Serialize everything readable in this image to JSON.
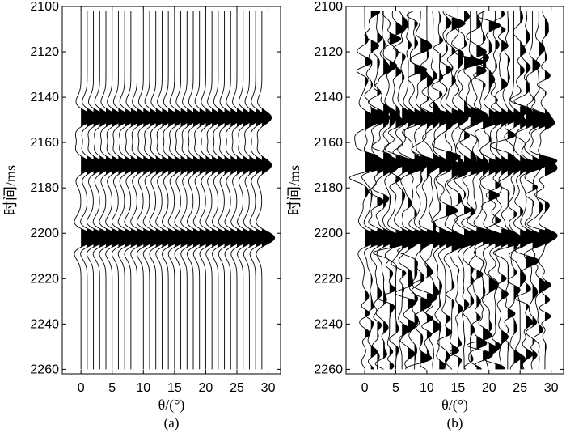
{
  "chart_data": [
    {
      "type": "seismic-wiggle",
      "panel_label": "(a)",
      "xlabel": "θ/(°)",
      "ylabel": "时间/ms",
      "xlim": [
        -3,
        32
      ],
      "ylim": [
        2100,
        2262
      ],
      "y_reversed": true,
      "x_ticks": [
        0,
        5,
        10,
        15,
        20,
        25,
        30
      ],
      "y_ticks": [
        2100,
        2120,
        2140,
        2160,
        2180,
        2200,
        2220,
        2240,
        2260
      ],
      "trace_angles": [
        0,
        1,
        2,
        3,
        4,
        5,
        6,
        7,
        8,
        9,
        10,
        11,
        12,
        13,
        14,
        15,
        16,
        17,
        18,
        19,
        20,
        21,
        22,
        23,
        24,
        25,
        26,
        27,
        28,
        29
      ],
      "time_range": [
        2102,
        2260
      ],
      "events": [
        {
          "time": 2149,
          "amplitude": 0.75
        },
        {
          "time": 2170,
          "amplitude": 0.75
        },
        {
          "time": 2202,
          "amplitude": 1.0
        }
      ],
      "noise": false,
      "fill": "positive",
      "color": "#000000"
    },
    {
      "type": "seismic-wiggle",
      "panel_label": "(b)",
      "xlabel": "θ/(°)",
      "ylabel": "时间/ms",
      "xlim": [
        -3,
        32
      ],
      "ylim": [
        2100,
        2262
      ],
      "y_reversed": true,
      "x_ticks": [
        0,
        5,
        10,
        15,
        20,
        25,
        30
      ],
      "y_ticks": [
        2100,
        2120,
        2140,
        2160,
        2180,
        2200,
        2220,
        2240,
        2260
      ],
      "trace_angles": [
        0,
        1,
        2,
        3,
        4,
        5,
        6,
        7,
        8,
        9,
        10,
        11,
        12,
        13,
        14,
        15,
        16,
        17,
        18,
        19,
        20,
        21,
        22,
        23,
        24,
        25,
        26,
        27,
        28,
        29
      ],
      "time_range": [
        2102,
        2260
      ],
      "events": [
        {
          "time": 2149,
          "amplitude": 0.75
        },
        {
          "time": 2170,
          "amplitude": 0.75
        },
        {
          "time": 2202,
          "amplitude": 1.0
        }
      ],
      "noise": true,
      "fill": "positive",
      "color": "#000000"
    }
  ]
}
